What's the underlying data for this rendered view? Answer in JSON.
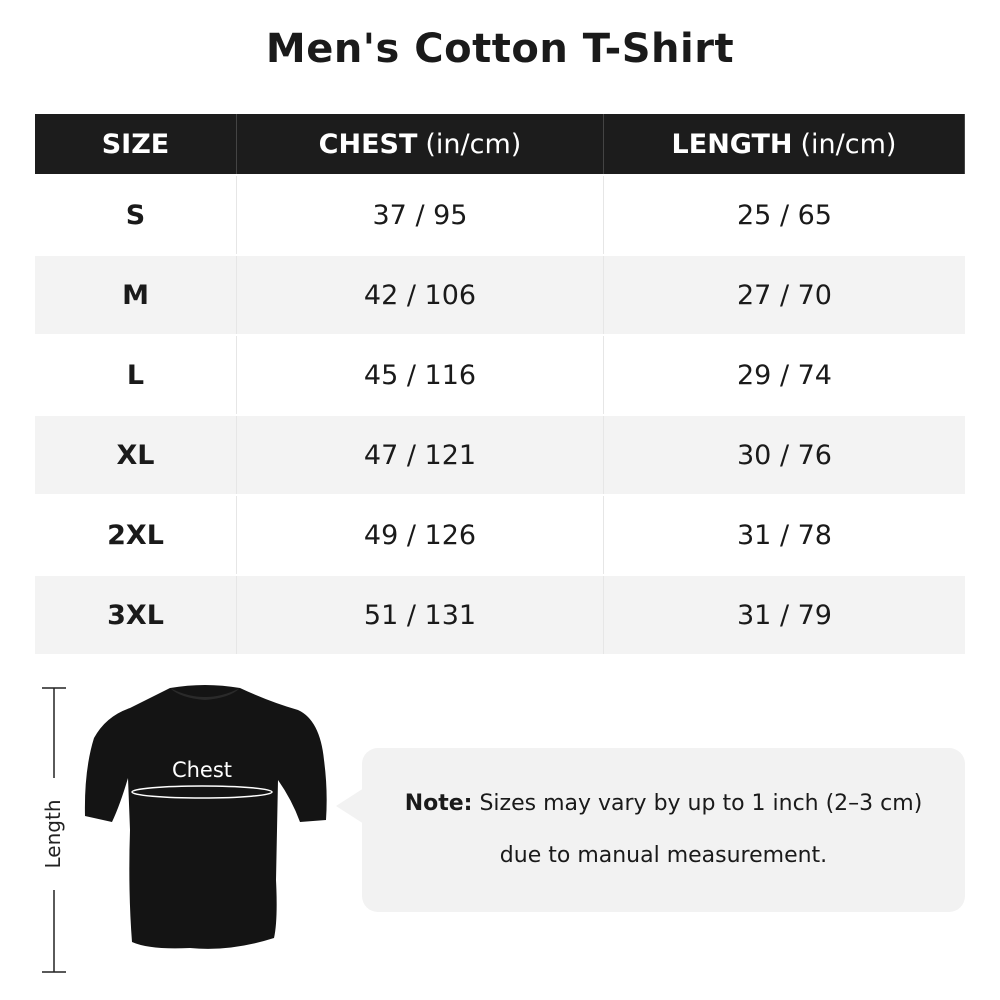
{
  "title": "Men's Cotton T-Shirt",
  "table": {
    "headers": [
      {
        "label": "SIZE",
        "unit": ""
      },
      {
        "label": "CHEST",
        "unit": "(in/cm)"
      },
      {
        "label": "LENGTH",
        "unit": "(in/cm)"
      }
    ],
    "rows": [
      {
        "size": "S",
        "chest": "37 / 95",
        "length": "25 / 65"
      },
      {
        "size": "M",
        "chest": "42 / 106",
        "length": "27 / 70"
      },
      {
        "size": "L",
        "chest": "45 / 116",
        "length": "29 / 74"
      },
      {
        "size": "XL",
        "chest": "47 / 121",
        "length": "30 / 76"
      },
      {
        "size": "2XL",
        "chest": "49 / 126",
        "length": "31 / 78"
      },
      {
        "size": "3XL",
        "chest": "51 / 131",
        "length": "31 / 79"
      }
    ]
  },
  "diagram": {
    "chest_label": "Chest",
    "length_label": "Length"
  },
  "note": {
    "label": "Note:",
    "line1": "Sizes may vary by up to 1 inch (2–3 cm)",
    "line2": "due to manual measurement."
  }
}
